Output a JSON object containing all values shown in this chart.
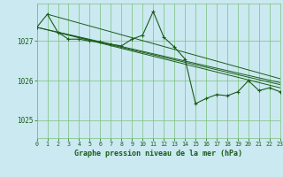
{
  "title": "Graphe pression niveau de la mer (hPa)",
  "bg_color": "#cbe9f0",
  "grid_color": "#7bbf7b",
  "line_color": "#1a5c1a",
  "xlim": [
    0,
    23
  ],
  "ylim": [
    1024.55,
    1027.95
  ],
  "yticks": [
    1025,
    1026,
    1027
  ],
  "main_x": [
    0,
    1,
    2,
    3,
    4,
    5,
    6,
    7,
    8,
    9,
    10,
    11,
    12,
    13,
    14,
    15,
    16,
    17,
    18,
    19,
    20,
    21,
    22,
    23
  ],
  "main_y": [
    1027.35,
    1027.68,
    1027.22,
    1027.05,
    1027.05,
    1027.0,
    1026.98,
    1026.92,
    1026.88,
    1027.05,
    1027.15,
    1027.75,
    1027.1,
    1026.85,
    1026.55,
    1025.42,
    1025.55,
    1025.65,
    1025.62,
    1025.72,
    1026.0,
    1025.75,
    1025.82,
    1025.72
  ],
  "trend_lines": [
    {
      "x": [
        0,
        23
      ],
      "y": [
        1027.35,
        1025.82
      ]
    },
    {
      "x": [
        0,
        23
      ],
      "y": [
        1027.35,
        1025.95
      ]
    },
    {
      "x": [
        1,
        23
      ],
      "y": [
        1027.68,
        1026.05
      ]
    },
    {
      "x": [
        2,
        23
      ],
      "y": [
        1027.22,
        1025.9
      ]
    }
  ]
}
